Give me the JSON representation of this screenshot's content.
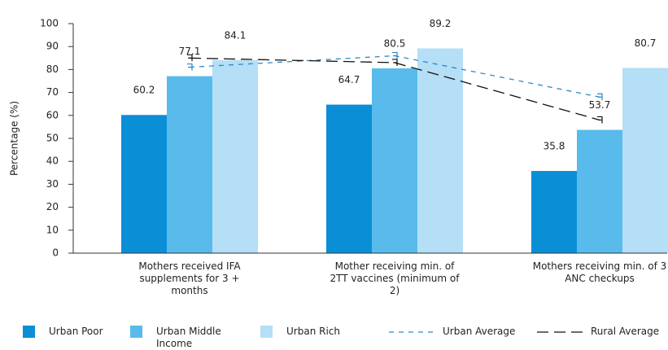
{
  "chart_data": {
    "type": "bar",
    "y_label": "Percentage (%)",
    "categories": [
      "Mothers received IFA supplements for 3 + months",
      "Mother receiving min. of 2TT vaccines (minimum of 2)",
      "Mothers receiving min. of 3 ANC checkups"
    ],
    "series": [
      {
        "name": "Urban Poor",
        "color": "#0a8fd6",
        "values": [
          60.2,
          64.7,
          35.8
        ]
      },
      {
        "name": "Urban Middle Income",
        "color": "#58bbeb",
        "values": [
          77.1,
          80.5,
          53.7
        ]
      },
      {
        "name": "Urban Rich",
        "color": "#b4dff6",
        "values": [
          84.1,
          89.2,
          80.7
        ]
      },
      {
        "name": "Urban Average",
        "type": "line",
        "color": "#2a8ac8",
        "values": [
          81,
          86,
          68
        ]
      },
      {
        "name": "Rural Average",
        "type": "line",
        "color": "#111111",
        "values": [
          85,
          83,
          58
        ]
      }
    ],
    "ylim": [
      0,
      100
    ],
    "yticks": [
      0,
      10,
      20,
      30,
      40,
      50,
      60,
      70,
      80,
      90,
      100
    ]
  }
}
